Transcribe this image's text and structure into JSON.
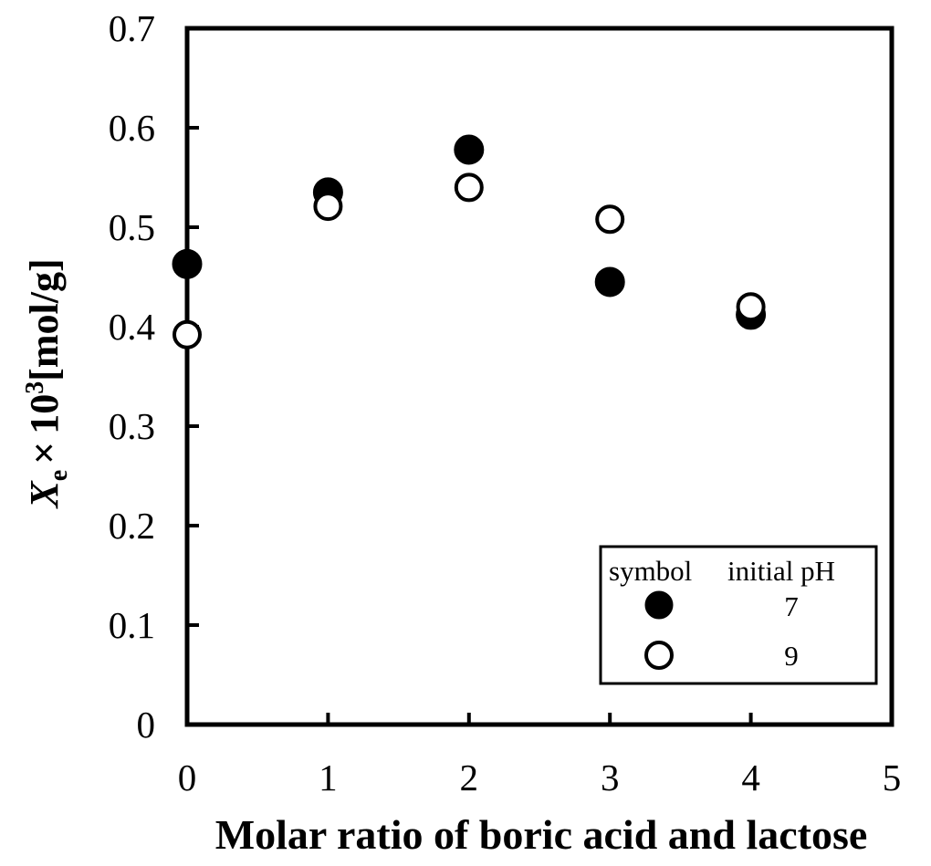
{
  "chart_data": {
    "type": "scatter",
    "title": "",
    "xlabel": "Molar ratio of boric acid and lactose",
    "ylabel": {
      "main": "X",
      "subscript": "e",
      "times": "×",
      "base": "10",
      "exponent": "3",
      "unit": "[mol/g]"
    },
    "xlim": [
      0,
      5
    ],
    "ylim": [
      0,
      0.7
    ],
    "x_ticks": [
      "0",
      "1",
      "2",
      "3",
      "4",
      "5"
    ],
    "y_ticks": [
      "0",
      "0.1",
      "0.2",
      "0.3",
      "0.4",
      "0.5",
      "0.6",
      "0.7"
    ],
    "grid": false,
    "legend": {
      "placement": "bottom-right",
      "header_symbol": "symbol",
      "header_value": "initial pH",
      "entries": [
        "7",
        "9"
      ]
    },
    "series": [
      {
        "name": "7",
        "marker": "filled-circle",
        "color": "#000000",
        "x": [
          0,
          1,
          2,
          3,
          4
        ],
        "y": [
          0.463,
          0.535,
          0.578,
          0.445,
          0.412
        ]
      },
      {
        "name": "9",
        "marker": "open-circle",
        "color": "#000000",
        "x": [
          0,
          1,
          2,
          3,
          4
        ],
        "y": [
          0.392,
          0.521,
          0.54,
          0.508,
          0.42
        ]
      }
    ]
  }
}
